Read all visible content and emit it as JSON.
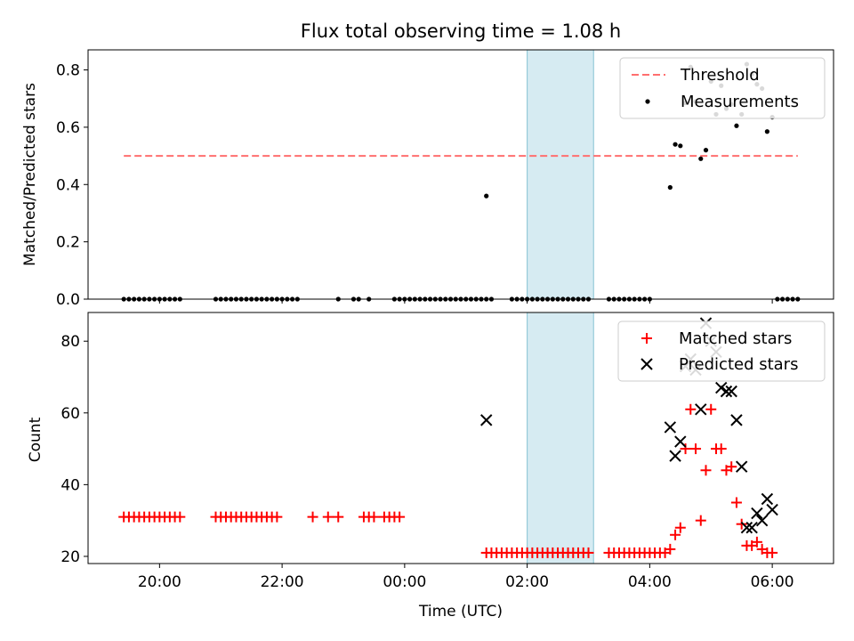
{
  "chart_data": [
    {
      "type": "scatter",
      "title": "Flux total observing time = 1.08 h",
      "xlabel": "",
      "ylabel": "Matched/Predicted stars",
      "xlim": [
        "18:50",
        "07:00"
      ],
      "ylim": [
        0,
        0.87
      ],
      "yticks": [
        "0.0",
        "0.2",
        "0.4",
        "0.6",
        "0.8"
      ],
      "highlight_span": {
        "start": "02:00",
        "end": "03:05",
        "color": "#add8e6"
      },
      "legend": {
        "placement": "top-right",
        "entries": [
          "Threshold",
          "Measurements"
        ]
      },
      "threshold": {
        "name": "Threshold",
        "value": 0.5,
        "x_start": "19:25",
        "x_end": "06:25",
        "color": "#ff6f6f"
      },
      "series": [
        {
          "name": "Measurements",
          "color": "#000000",
          "points": [
            [
              "19:25",
              0
            ],
            [
              "19:30",
              0
            ],
            [
              "19:35",
              0
            ],
            [
              "19:40",
              0
            ],
            [
              "19:45",
              0
            ],
            [
              "19:50",
              0
            ],
            [
              "19:55",
              0
            ],
            [
              "20:00",
              0
            ],
            [
              "20:05",
              0
            ],
            [
              "20:10",
              0
            ],
            [
              "20:15",
              0
            ],
            [
              "20:20",
              0
            ],
            [
              "20:55",
              0
            ],
            [
              "21:00",
              0
            ],
            [
              "21:05",
              0
            ],
            [
              "21:10",
              0
            ],
            [
              "21:15",
              0
            ],
            [
              "21:20",
              0
            ],
            [
              "21:25",
              0
            ],
            [
              "21:30",
              0
            ],
            [
              "21:35",
              0
            ],
            [
              "21:40",
              0
            ],
            [
              "21:45",
              0
            ],
            [
              "21:50",
              0
            ],
            [
              "21:55",
              0
            ],
            [
              "22:00",
              0
            ],
            [
              "22:05",
              0
            ],
            [
              "22:10",
              0
            ],
            [
              "22:15",
              0
            ],
            [
              "22:55",
              0
            ],
            [
              "23:10",
              0
            ],
            [
              "23:15",
              0
            ],
            [
              "23:25",
              0
            ],
            [
              "23:50",
              0
            ],
            [
              "23:55",
              0
            ],
            [
              "00:00",
              0
            ],
            [
              "00:05",
              0
            ],
            [
              "00:10",
              0
            ],
            [
              "00:15",
              0
            ],
            [
              "00:20",
              0
            ],
            [
              "00:25",
              0
            ],
            [
              "00:30",
              0
            ],
            [
              "00:35",
              0
            ],
            [
              "00:40",
              0
            ],
            [
              "00:45",
              0
            ],
            [
              "00:50",
              0
            ],
            [
              "00:55",
              0
            ],
            [
              "01:00",
              0
            ],
            [
              "01:05",
              0
            ],
            [
              "01:10",
              0
            ],
            [
              "01:15",
              0
            ],
            [
              "01:20",
              0
            ],
            [
              "01:25",
              0
            ],
            [
              "01:45",
              0
            ],
            [
              "01:50",
              0
            ],
            [
              "01:55",
              0
            ],
            [
              "02:00",
              0
            ],
            [
              "02:05",
              0
            ],
            [
              "02:10",
              0
            ],
            [
              "02:15",
              0
            ],
            [
              "02:20",
              0
            ],
            [
              "02:25",
              0
            ],
            [
              "02:30",
              0
            ],
            [
              "02:35",
              0
            ],
            [
              "02:40",
              0
            ],
            [
              "02:45",
              0
            ],
            [
              "02:50",
              0
            ],
            [
              "02:55",
              0
            ],
            [
              "03:00",
              0
            ],
            [
              "03:20",
              0
            ],
            [
              "03:25",
              0
            ],
            [
              "03:30",
              0
            ],
            [
              "03:35",
              0
            ],
            [
              "03:40",
              0
            ],
            [
              "03:45",
              0
            ],
            [
              "03:50",
              0
            ],
            [
              "03:55",
              0
            ],
            [
              "04:00",
              0
            ],
            [
              "01:20",
              0.36
            ],
            [
              "04:20",
              0.39
            ],
            [
              "04:25",
              0.54
            ],
            [
              "04:30",
              0.535
            ],
            [
              "04:35",
              0.685
            ],
            [
              "04:40",
              0.81
            ],
            [
              "04:45",
              0.69
            ],
            [
              "04:50",
              0.49
            ],
            [
              "04:55",
              0.52
            ],
            [
              "05:00",
              0.76
            ],
            [
              "05:05",
              0.645
            ],
            [
              "05:10",
              0.745
            ],
            [
              "05:15",
              0.665
            ],
            [
              "05:20",
              0.68
            ],
            [
              "05:25",
              0.605
            ],
            [
              "05:30",
              0.645
            ],
            [
              "05:35",
              0.82
            ],
            [
              "05:40",
              0.785
            ],
            [
              "05:45",
              0.75
            ],
            [
              "05:50",
              0.735
            ],
            [
              "05:55",
              0.585
            ],
            [
              "06:00",
              0.635
            ],
            [
              "06:05",
              0
            ],
            [
              "06:10",
              0
            ],
            [
              "06:15",
              0
            ],
            [
              "06:20",
              0
            ],
            [
              "06:25",
              0
            ]
          ]
        }
      ]
    },
    {
      "type": "scatter",
      "title": "",
      "xlabel": "Time (UTC)",
      "ylabel": "Count",
      "xlim": [
        "18:50",
        "07:00"
      ],
      "ylim": [
        18,
        88
      ],
      "xticks": [
        "20:00",
        "22:00",
        "00:00",
        "02:00",
        "04:00",
        "06:00"
      ],
      "yticks": [
        "20",
        "40",
        "60",
        "80"
      ],
      "highlight_span": {
        "start": "02:00",
        "end": "03:05",
        "color": "#add8e6"
      },
      "legend": {
        "placement": "top-right",
        "entries": [
          "Matched stars",
          "Predicted stars"
        ]
      },
      "series": [
        {
          "name": "Matched stars",
          "color": "#ff0000",
          "marker": "plus",
          "points": [
            [
              "19:25",
              31
            ],
            [
              "19:30",
              31
            ],
            [
              "19:35",
              31
            ],
            [
              "19:40",
              31
            ],
            [
              "19:45",
              31
            ],
            [
              "19:50",
              31
            ],
            [
              "19:55",
              31
            ],
            [
              "20:00",
              31
            ],
            [
              "20:05",
              31
            ],
            [
              "20:10",
              31
            ],
            [
              "20:15",
              31
            ],
            [
              "20:20",
              31
            ],
            [
              "20:55",
              31
            ],
            [
              "21:00",
              31
            ],
            [
              "21:05",
              31
            ],
            [
              "21:10",
              31
            ],
            [
              "21:15",
              31
            ],
            [
              "21:20",
              31
            ],
            [
              "21:25",
              31
            ],
            [
              "21:30",
              31
            ],
            [
              "21:35",
              31
            ],
            [
              "21:40",
              31
            ],
            [
              "21:45",
              31
            ],
            [
              "21:50",
              31
            ],
            [
              "21:55",
              31
            ],
            [
              "22:30",
              31
            ],
            [
              "22:45",
              31
            ],
            [
              "22:55",
              31
            ],
            [
              "23:20",
              31
            ],
            [
              "23:25",
              31
            ],
            [
              "23:30",
              31
            ],
            [
              "23:40",
              31
            ],
            [
              "23:45",
              31
            ],
            [
              "23:50",
              31
            ],
            [
              "23:55",
              31
            ],
            [
              "01:20",
              21
            ],
            [
              "01:25",
              21
            ],
            [
              "01:30",
              21
            ],
            [
              "01:35",
              21
            ],
            [
              "01:40",
              21
            ],
            [
              "01:45",
              21
            ],
            [
              "01:50",
              21
            ],
            [
              "01:55",
              21
            ],
            [
              "02:00",
              21
            ],
            [
              "02:05",
              21
            ],
            [
              "02:10",
              21
            ],
            [
              "02:15",
              21
            ],
            [
              "02:20",
              21
            ],
            [
              "02:25",
              21
            ],
            [
              "02:30",
              21
            ],
            [
              "02:35",
              21
            ],
            [
              "02:40",
              21
            ],
            [
              "02:45",
              21
            ],
            [
              "02:50",
              21
            ],
            [
              "02:55",
              21
            ],
            [
              "03:00",
              21
            ],
            [
              "03:20",
              21
            ],
            [
              "03:25",
              21
            ],
            [
              "03:30",
              21
            ],
            [
              "03:35",
              21
            ],
            [
              "03:40",
              21
            ],
            [
              "03:45",
              21
            ],
            [
              "03:50",
              21
            ],
            [
              "03:55",
              21
            ],
            [
              "04:00",
              21
            ],
            [
              "04:05",
              21
            ],
            [
              "04:10",
              21
            ],
            [
              "04:15",
              21
            ],
            [
              "04:20",
              22
            ],
            [
              "04:25",
              26
            ],
            [
              "04:30",
              28
            ],
            [
              "04:35",
              50
            ],
            [
              "04:40",
              61
            ],
            [
              "04:45",
              50
            ],
            [
              "04:50",
              30
            ],
            [
              "04:55",
              44
            ],
            [
              "05:00",
              61
            ],
            [
              "05:05",
              50
            ],
            [
              "05:10",
              50
            ],
            [
              "05:15",
              44
            ],
            [
              "05:20",
              45
            ],
            [
              "05:25",
              35
            ],
            [
              "05:30",
              29
            ],
            [
              "05:35",
              23
            ],
            [
              "05:40",
              23
            ],
            [
              "05:45",
              24
            ],
            [
              "05:50",
              22
            ],
            [
              "05:55",
              21
            ],
            [
              "06:00",
              21
            ]
          ]
        },
        {
          "name": "Predicted stars",
          "color": "#000000",
          "marker": "x",
          "points": [
            [
              "01:20",
              58
            ],
            [
              "04:20",
              56
            ],
            [
              "04:25",
              48
            ],
            [
              "04:30",
              52
            ],
            [
              "04:35",
              73
            ],
            [
              "04:40",
              75
            ],
            [
              "04:45",
              72
            ],
            [
              "04:50",
              61
            ],
            [
              "04:55",
              85
            ],
            [
              "05:00",
              80
            ],
            [
              "05:05",
              77
            ],
            [
              "05:10",
              67
            ],
            [
              "05:15",
              66
            ],
            [
              "05:20",
              66
            ],
            [
              "05:25",
              58
            ],
            [
              "05:30",
              45
            ],
            [
              "05:35",
              28
            ],
            [
              "05:40",
              28
            ],
            [
              "05:45",
              32
            ],
            [
              "05:50",
              30
            ],
            [
              "05:55",
              36
            ],
            [
              "06:00",
              33
            ]
          ]
        }
      ]
    }
  ]
}
